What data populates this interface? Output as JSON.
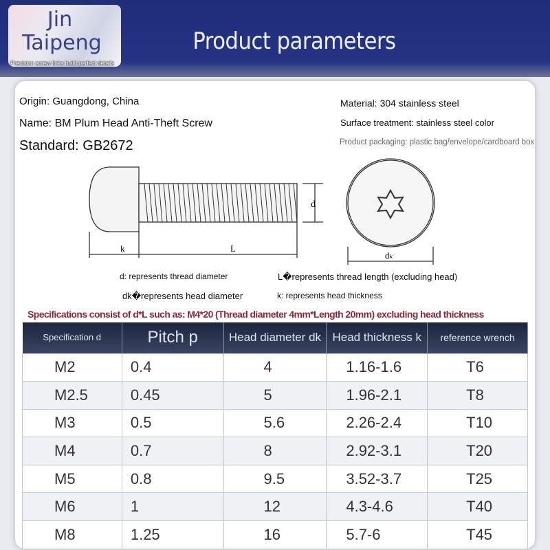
{
  "header": {
    "logo_line1": "Jin",
    "logo_line2": "Taipeng",
    "tagline": "Precision screw links build perfect details",
    "title": "Product parameters"
  },
  "info": {
    "origin": "Origin: Guangdong, China",
    "name": "Name: BM Plum Head Anti-Theft Screw",
    "standard": "Standard: GB2672",
    "material": "Material: 304 stainless steel",
    "surface": "Surface treatment: stainless steel color",
    "packaging": "Product packaging: plastic bag/envelope/cardboard box"
  },
  "diagram": {
    "k": "k",
    "L": "L",
    "d": "d",
    "dk": "dₖ"
  },
  "legend": {
    "d": "d: represents thread diameter",
    "L": "L�represents thread length (excluding head)",
    "dk": "dk�represents head diameter",
    "k": "k: represents head thickness"
  },
  "spec_note": "Specifications consist of d*L such as: M4*20 (Thread diameter 4mm*Length 20mm) excluding head thickness",
  "table": {
    "headers": [
      "Specification d",
      "Pitch p",
      "Head diameter dk",
      "Head thickness k",
      "reference wrench"
    ],
    "rows": [
      [
        "M2",
        "0.4",
        "4",
        "1.16-1.6",
        "T6"
      ],
      [
        "M2.5",
        "0.45",
        "5",
        "1.96-2.1",
        "T8"
      ],
      [
        "M3",
        "0.5",
        "5.6",
        "2.26-2.4",
        "T10"
      ],
      [
        "M4",
        "0.7",
        "8",
        "2.92-3.1",
        "T20"
      ],
      [
        "M5",
        "0.8",
        "9.5",
        "3.52-3.7",
        "T25"
      ],
      [
        "M6",
        "1",
        "12",
        "4.3-4.6",
        "T40"
      ],
      [
        "M8",
        "1.25",
        "16",
        "5.7-6",
        "T45"
      ]
    ]
  }
}
